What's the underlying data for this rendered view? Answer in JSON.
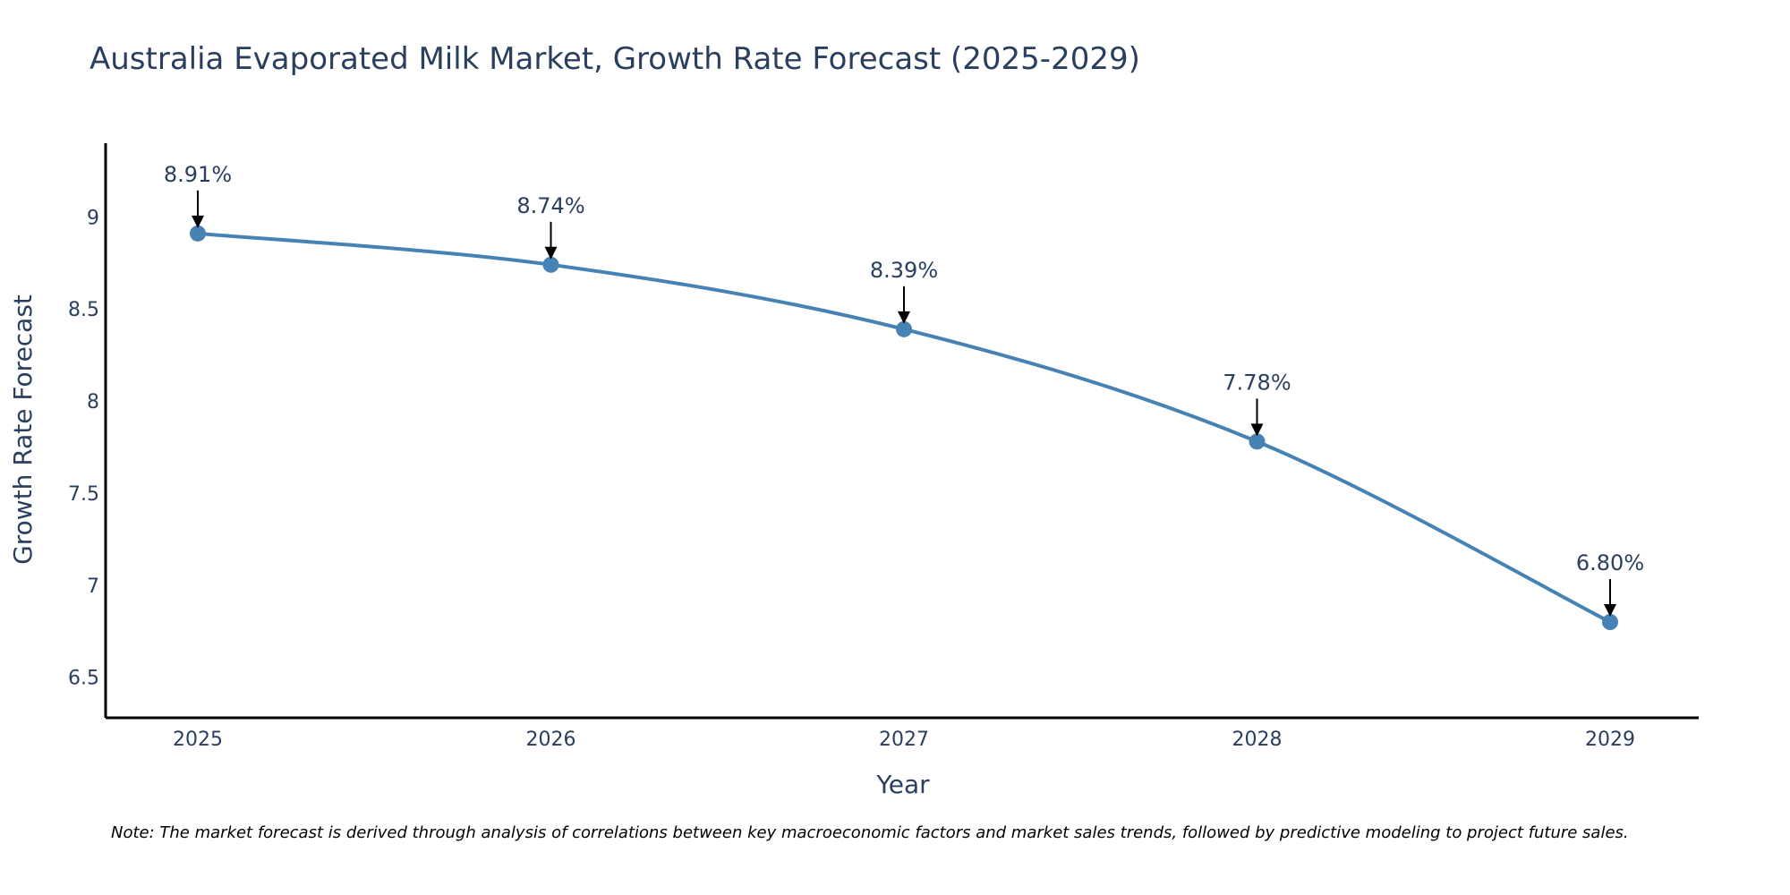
{
  "chart_data": {
    "type": "line",
    "title": "Australia Evaporated Milk Market, Growth Rate Forecast (2025-2029)",
    "xlabel": "Year",
    "ylabel": "Growth Rate Forecast",
    "categories": [
      "2025",
      "2026",
      "2027",
      "2028",
      "2029"
    ],
    "series": [
      {
        "name": "Growth Rate Forecast",
        "values": [
          8.91,
          8.74,
          8.39,
          7.78,
          6.8
        ],
        "labels": [
          "8.91%",
          "8.74%",
          "8.39%",
          "7.78%",
          "6.80%"
        ]
      }
    ],
    "yticks": [
      6.5,
      7,
      7.5,
      8,
      8.5,
      9
    ],
    "ytick_labels": [
      "6.5",
      "7",
      "7.5",
      "8",
      "8.5",
      "9"
    ],
    "ylim": [
      6.28,
      9.4
    ],
    "grid": false,
    "line_color": "#4682b4",
    "axis_color": "#000000",
    "annotation_arrow_color": "#000000"
  },
  "note": "Note: The market forecast is derived through analysis of correlations between key macroeconomic factors and market sales trends, followed by predictive modeling to project future sales."
}
